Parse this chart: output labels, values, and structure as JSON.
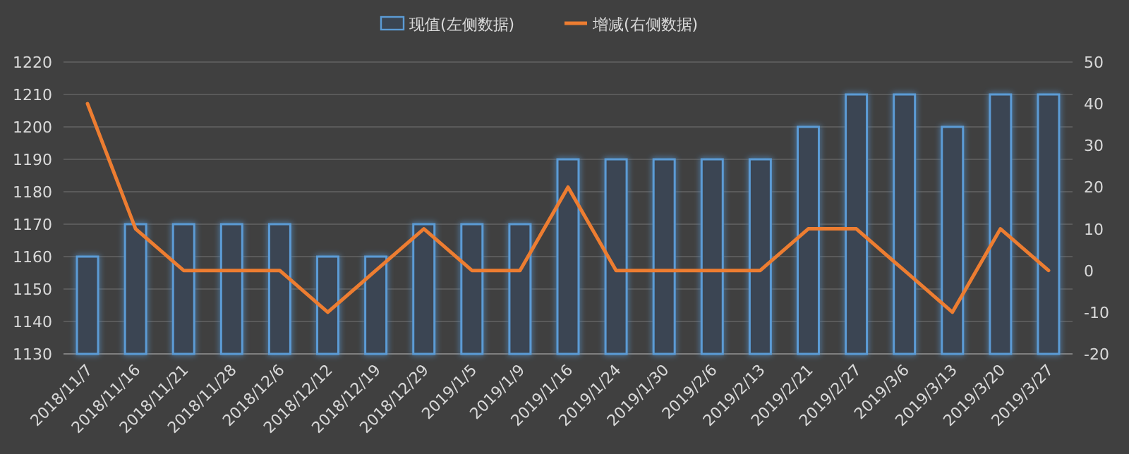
{
  "chart_data": {
    "type": "bar",
    "categories": [
      "2018/11/7",
      "2018/11/16",
      "2018/11/21",
      "2018/11/28",
      "2018/12/6",
      "2018/12/12",
      "2018/12/19",
      "2018/12/29",
      "2019/1/5",
      "2019/1/9",
      "2019/1/16",
      "2019/1/24",
      "2019/1/30",
      "2019/2/6",
      "2019/2/13",
      "2019/2/21",
      "2019/2/27",
      "2019/3/6",
      "2019/3/13",
      "2019/3/20",
      "2019/3/27"
    ],
    "series": [
      {
        "name": "现值(左侧数据)",
        "color": "#5b9bd5",
        "values": [
          1160,
          1170,
          1170,
          1170,
          1170,
          1160,
          1160,
          1170,
          1170,
          1170,
          1190,
          1190,
          1190,
          1190,
          1190,
          1200,
          1210,
          1210,
          1200,
          1210,
          1210
        ]
      },
      {
        "name": "增减(右侧数据)",
        "type": "line",
        "axis": "y2",
        "color": "#ed7d31",
        "values": [
          40,
          10,
          0,
          0,
          0,
          -10,
          0,
          10,
          0,
          0,
          20,
          0,
          0,
          0,
          0,
          10,
          10,
          0,
          -10,
          10,
          0
        ]
      }
    ],
    "ylim": [
      1130,
      1220
    ],
    "yticks": [
      1130,
      1140,
      1150,
      1160,
      1170,
      1180,
      1190,
      1200,
      1210,
      1220
    ],
    "y2lim": [
      -20,
      50
    ],
    "y2ticks": [
      -20,
      -10,
      0,
      10,
      20,
      30,
      40,
      50
    ],
    "grid": "y",
    "legend": "top"
  }
}
